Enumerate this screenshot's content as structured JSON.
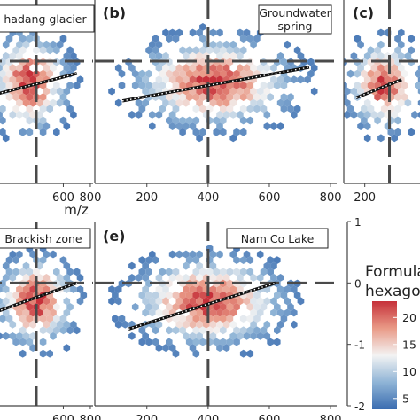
{
  "chart_data": [
    {
      "type": "scatter",
      "panel_label": "",
      "title": "hadang glacier",
      "xlim": [
        0,
        820
      ],
      "ylim": [
        -2,
        1
      ],
      "x_ticks": [
        600,
        800
      ],
      "x_tick_labels": [
        "600",
        "800"
      ],
      "xlabel": "m/z",
      "center": [
        350,
        -0.35
      ],
      "spread": [
        200,
        0.55
      ],
      "trend": {
        "x": [
          0,
          700
        ],
        "y": [
          -0.6,
          -0.2
        ]
      }
    },
    {
      "type": "scatter",
      "panel_label": "(b)",
      "title": [
        "Groundwater",
        "spring"
      ],
      "xlim": [
        30,
        820
      ],
      "ylim": [
        -2,
        1
      ],
      "x_ticks": [
        200,
        400,
        600,
        800
      ],
      "x_tick_labels": [
        "200",
        "400",
        "600",
        "800"
      ],
      "xlabel": "",
      "center": [
        420,
        -0.35
      ],
      "spread": [
        180,
        0.5
      ],
      "trend": {
        "x": [
          120,
          730
        ],
        "y": [
          -0.65,
          -0.1
        ]
      }
    },
    {
      "type": "scatter",
      "panel_label": "(c)",
      "title": "",
      "xlim": [
        30,
        820
      ],
      "ylim": [
        -2,
        1
      ],
      "x_ticks": [
        200
      ],
      "x_tick_labels": [
        "200"
      ],
      "xlabel": "",
      "center": [
        360,
        -0.4
      ],
      "spread": [
        200,
        0.5
      ],
      "trend": {
        "x": [
          130,
          500
        ],
        "y": [
          -0.6,
          -0.3
        ]
      }
    },
    {
      "type": "scatter",
      "panel_label": "",
      "title": "Brackish zone",
      "xlim": [
        0,
        820
      ],
      "ylim": [
        -2,
        1
      ],
      "x_ticks": [
        600,
        800
      ],
      "x_tick_labels": [
        "600",
        "800"
      ],
      "xlabel": "",
      "center": [
        400,
        -0.3
      ],
      "spread": [
        200,
        0.5
      ],
      "trend": {
        "x": [
          0,
          700
        ],
        "y": [
          -0.55,
          0
        ]
      }
    },
    {
      "type": "scatter",
      "panel_label": "(e)",
      "title": "Nam Co Lake",
      "xlim": [
        30,
        820
      ],
      "ylim": [
        -2,
        1
      ],
      "x_ticks": [
        200,
        400,
        600,
        800
      ],
      "x_tick_labels": [
        "200",
        "400",
        "600",
        "800"
      ],
      "xlabel": "",
      "y_ticks": [
        1,
        0,
        -1,
        -2
      ],
      "y_tick_labels": [
        "1",
        "0",
        "-1",
        "-2"
      ],
      "center": [
        400,
        -0.3
      ],
      "spread": [
        170,
        0.5
      ],
      "trend": {
        "x": [
          140,
          620
        ],
        "y": [
          -0.75,
          0
        ]
      }
    }
  ],
  "legend": {
    "title": [
      "Formula",
      "hexagon"
    ],
    "ticks": [
      "20",
      "15",
      "10",
      "5"
    ],
    "values": [
      20,
      15,
      10,
      5
    ],
    "range": [
      3,
      23
    ],
    "colors": [
      "#3a6cb0",
      "#8fb4d6",
      "#f3f3f3",
      "#e99a87",
      "#c6313a"
    ]
  }
}
